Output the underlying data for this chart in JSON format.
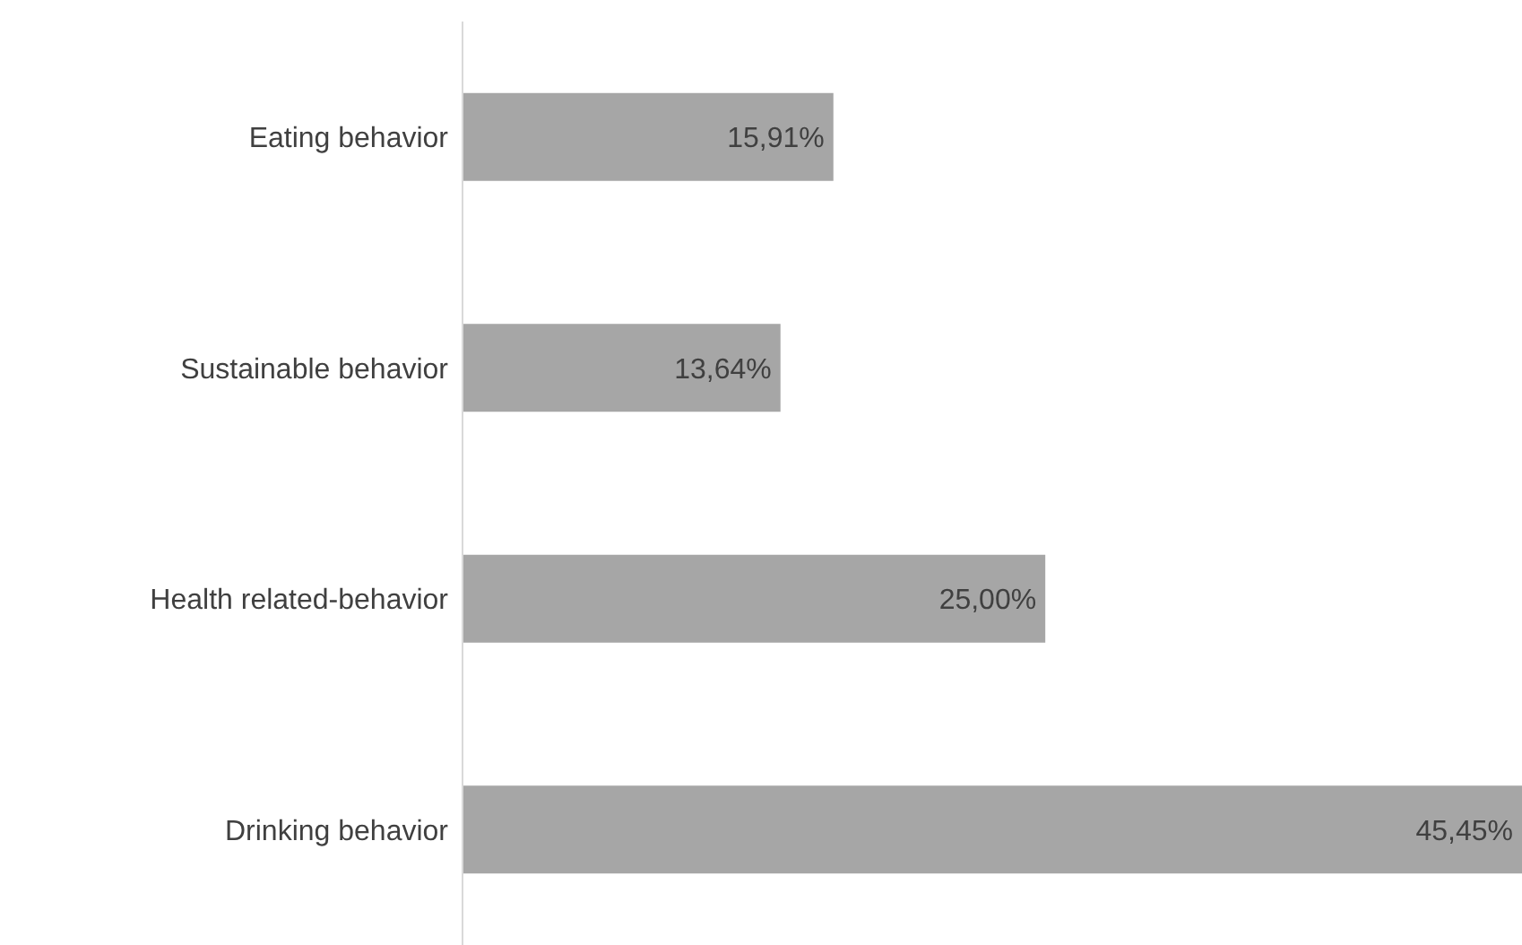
{
  "chart_data": {
    "type": "bar",
    "orientation": "horizontal",
    "categories": [
      "Eating behavior",
      "Sustainable behavior",
      "Health related-behavior",
      "Drinking behavior"
    ],
    "values": [
      15.91,
      13.64,
      25.0,
      45.45
    ],
    "value_labels": [
      "15,91%",
      "13,64%",
      "25,00%",
      "45,45%"
    ],
    "color": "#a6a6a6"
  }
}
